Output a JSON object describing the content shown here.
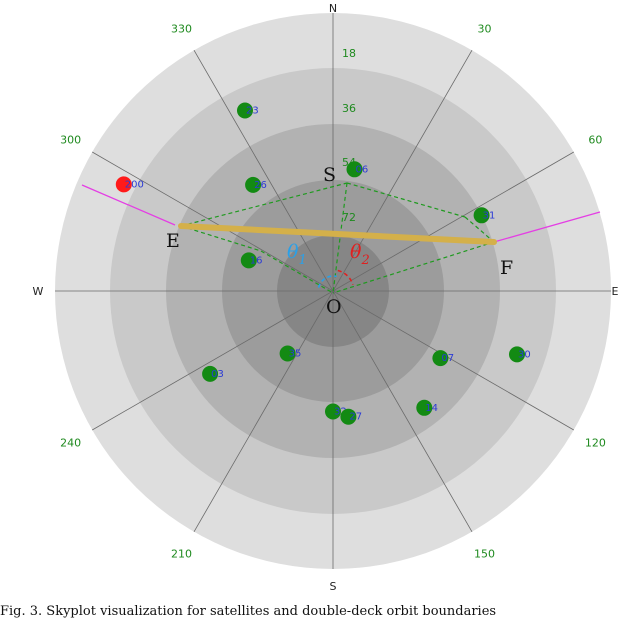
{
  "compass": {
    "north": "N",
    "east": "E",
    "south": "S",
    "west": "W"
  },
  "azimuth_labels": [
    {
      "angle": 30,
      "text": "30"
    },
    {
      "angle": 60,
      "text": "60"
    },
    {
      "angle": 120,
      "text": "120"
    },
    {
      "angle": 150,
      "text": "150"
    },
    {
      "angle": 210,
      "text": "210"
    },
    {
      "angle": 240,
      "text": "240"
    },
    {
      "angle": 300,
      "text": "300"
    },
    {
      "angle": 330,
      "text": "330"
    }
  ],
  "elevation_labels": [
    "18",
    "36",
    "54",
    "72"
  ],
  "satellites": [
    {
      "prn": "23",
      "az": 334,
      "el": 25,
      "color": "#138a13"
    },
    {
      "prn": "200",
      "az": 297,
      "el": 14,
      "color": "#ff1a1a"
    },
    {
      "prn": "26",
      "az": 323,
      "el": 47,
      "color": "#138a13"
    },
    {
      "prn": "16",
      "az": 290,
      "el": 61,
      "color": "#138a13"
    },
    {
      "prn": "06",
      "az": 10,
      "el": 50,
      "color": "#138a13"
    },
    {
      "prn": "31",
      "az": 63,
      "el": 36,
      "color": "#138a13"
    },
    {
      "prn": "35",
      "az": 216,
      "el": 65,
      "color": "#138a13"
    },
    {
      "prn": "03",
      "az": 236,
      "el": 42,
      "color": "#138a13"
    },
    {
      "prn": "07",
      "az": 122,
      "el": 49,
      "color": "#138a13"
    },
    {
      "prn": "30",
      "az": 109,
      "el": 27,
      "color": "#138a13"
    },
    {
      "prn": "14",
      "az": 142,
      "el": 42,
      "color": "#138a13"
    },
    {
      "prn": "32",
      "az": 180,
      "el": 51,
      "color": "#138a13"
    },
    {
      "prn": "27",
      "az": 173,
      "el": 49,
      "color": "#138a13"
    }
  ],
  "points": {
    "S": "S",
    "E": "E",
    "F": "F",
    "O": "O"
  },
  "angles": {
    "theta1": "θ",
    "theta1_sub": "1",
    "theta2": "θ",
    "theta2_sub": "2"
  },
  "colors": {
    "ring_outer": "#dedede",
    "ring_2": "#c9c9c9",
    "ring_3": "#b2b2b2",
    "ring_4": "#9c9c9c",
    "ring_inner": "#868686",
    "boundary_line": "#d4b04a",
    "dashed": "#1f9a1f",
    "magenta": "#e43ee4",
    "theta1_color": "#2aa0e8",
    "theta2_color": "#e02020"
  },
  "caption": "Fig. 3.  Skyplot visualization for satellites and double-deck orbit boundaries"
}
